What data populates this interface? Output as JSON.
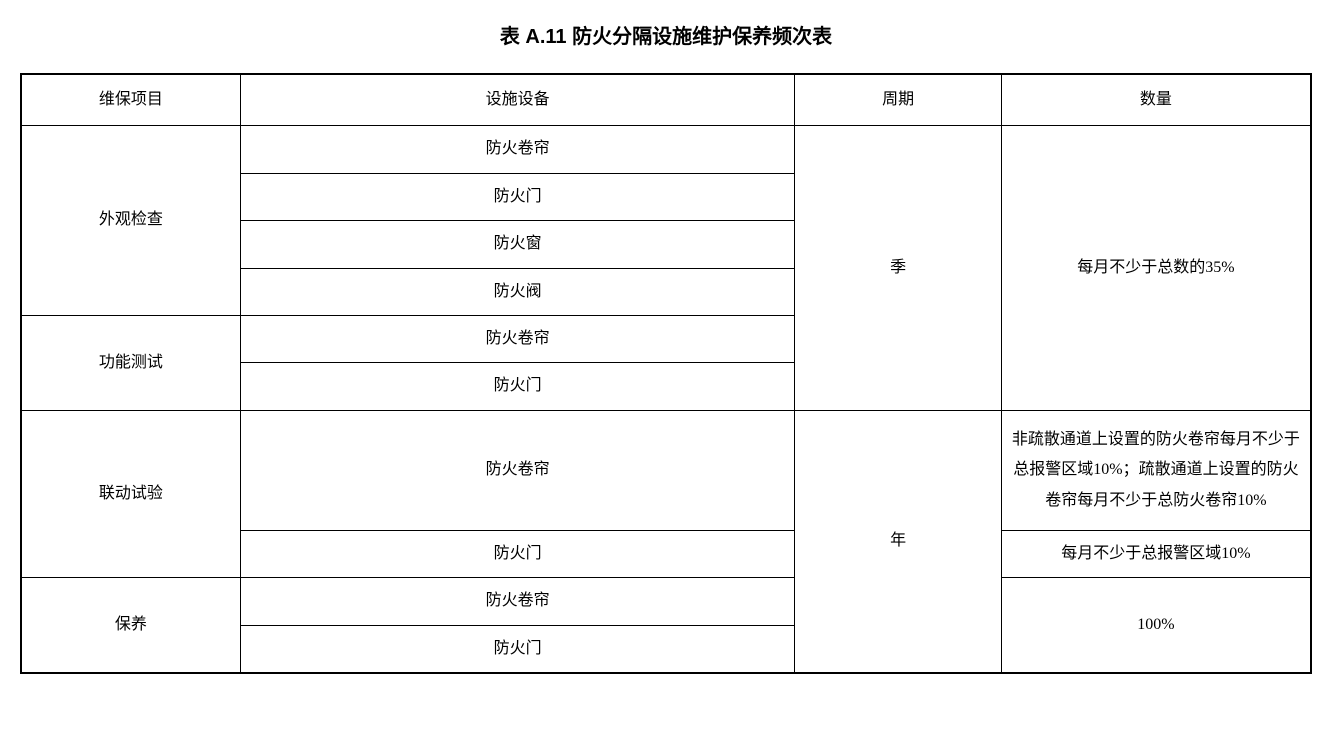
{
  "table": {
    "title": "表 A.11 防火分隔设施维护保养频次表",
    "headers": {
      "col1": "维保项目",
      "col2": "设施设备",
      "col3": "周期",
      "col4": "数量"
    },
    "section_quarterly": {
      "visual_inspection_label": "外观检查",
      "functional_test_label": "功能测试",
      "period": "季",
      "quantity": "每月不少于总数的35%",
      "equipment": {
        "fire_curtain_1": "防火卷帘",
        "fire_door_1": "防火门",
        "fire_window": "防火窗",
        "fire_valve": "防火阀",
        "fire_curtain_2": "防火卷帘",
        "fire_door_2": "防火门"
      }
    },
    "section_yearly": {
      "linkage_test_label": "联动试验",
      "maintenance_label": "保养",
      "period": "年",
      "equipment": {
        "fire_curtain_3": "防火卷帘",
        "fire_door_3": "防火门",
        "fire_curtain_4": "防火卷帘",
        "fire_door_4": "防火门"
      },
      "quantities": {
        "linkage_curtain": "非疏散通道上设置的防火卷帘每月不少于总报警区域10%；疏散通道上设置的防火卷帘每月不少于总防火卷帘10%",
        "linkage_door": "每月不少于总报警区域10%",
        "maintenance": "100%"
      }
    }
  },
  "style": {
    "background_color": "#ffffff",
    "text_color": "#000000",
    "border_color": "#000000",
    "title_fontsize": 20,
    "cell_fontsize": 16,
    "line_height": 1.9
  }
}
